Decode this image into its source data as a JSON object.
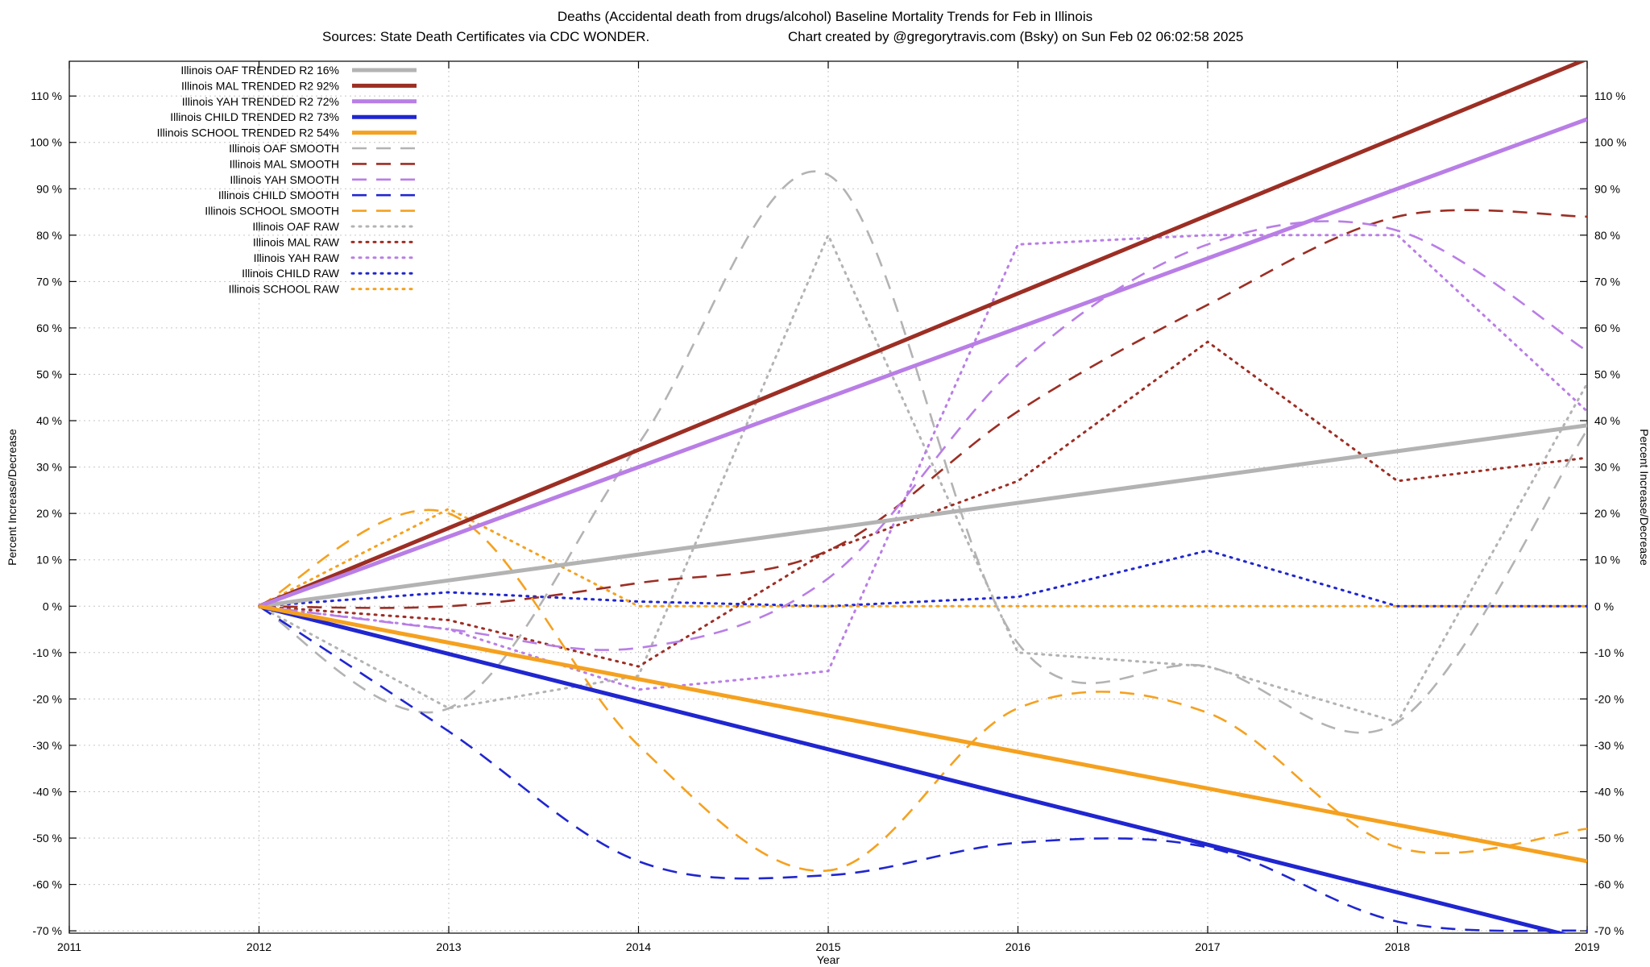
{
  "header": {
    "title_line1": "Deaths (Accidental death from drugs/alcohol)  Baseline Mortality Trends for Feb in Illinois",
    "sources": "Sources: State Death Certificates via CDC WONDER.",
    "credit": "Chart created by @gregorytravis.com (Bsky) on Sun Feb 02 06:02:58 2025"
  },
  "chart_data": {
    "type": "line",
    "title": "Deaths (Accidental death from drugs/alcohol)  Baseline Mortality Trends for Feb in Illinois",
    "subtitle_left": "Sources: State Death Certificates via CDC WONDER.",
    "subtitle_right": "Chart created by @gregorytravis.com (Bsky) on Sun Feb 02 06:02:58 2025",
    "xlabel": "Year",
    "ylabel_left": "Percent Increase/Decrease",
    "ylabel_right": "Percent Increase/Decrease",
    "xlim": [
      2011,
      2019
    ],
    "ylim": [
      -70.5,
      117.5
    ],
    "x_ticks": [
      2011,
      2012,
      2013,
      2014,
      2015,
      2016,
      2017,
      2018,
      2019
    ],
    "y_ticks": [
      -70,
      -60,
      -50,
      -40,
      -30,
      -20,
      -10,
      0,
      10,
      20,
      30,
      40,
      50,
      60,
      70,
      80,
      90,
      100,
      110
    ],
    "y_tick_suffix": " %",
    "grid": true,
    "legend_position": "top-left-inside",
    "years": [
      2012,
      2013,
      2014,
      2015,
      2016,
      2017,
      2018,
      2019
    ],
    "series": [
      {
        "id": "oaf-trended",
        "label": "Illinois OAF TRENDED R2  16%",
        "style": "trended",
        "color": "#b3b3b3",
        "x": [
          2012,
          2019
        ],
        "values": [
          0,
          39
        ]
      },
      {
        "id": "mal-trended",
        "label": "Illinois MAL TRENDED R2  92%",
        "style": "trended",
        "color": "#9c2e24",
        "x": [
          2012,
          2019
        ],
        "values": [
          0,
          118
        ]
      },
      {
        "id": "yah-trended",
        "label": "Illinois YAH TRENDED R2  72%",
        "style": "trended",
        "color": "#b97ee6",
        "x": [
          2012,
          2019
        ],
        "values": [
          0,
          105
        ]
      },
      {
        "id": "child-trended",
        "label": "Illinois CHILD TRENDED R2  73%",
        "style": "trended",
        "color": "#2026cf",
        "x": [
          2012,
          2019
        ],
        "values": [
          0,
          -72
        ]
      },
      {
        "id": "school-trended",
        "label": "Illinois SCHOOL TRENDED R2  54%",
        "style": "trended",
        "color": "#f5a11f",
        "x": [
          2012,
          2019
        ],
        "values": [
          0,
          -55
        ]
      },
      {
        "id": "oaf-smooth",
        "label": "Illinois OAF SMOOTH",
        "style": "smooth",
        "color": "#b3b3b3",
        "values": [
          0,
          -22,
          35,
          93,
          -8,
          -13,
          -25,
          38
        ]
      },
      {
        "id": "mal-smooth",
        "label": "Illinois MAL SMOOTH",
        "style": "smooth",
        "color": "#9c2e24",
        "values": [
          0,
          0,
          5,
          12,
          42,
          65,
          84,
          84
        ]
      },
      {
        "id": "yah-smooth",
        "label": "Illinois YAH SMOOTH",
        "style": "smooth",
        "color": "#b97ee6",
        "values": [
          0,
          -5,
          -9,
          6,
          52,
          78,
          81,
          55
        ]
      },
      {
        "id": "child-smooth",
        "label": "Illinois CHILD SMOOTH",
        "style": "smooth",
        "color": "#2026cf",
        "values": [
          0,
          -27,
          -55,
          -58,
          -51,
          -52,
          -68,
          -70
        ]
      },
      {
        "id": "school-smooth",
        "label": "Illinois SCHOOL SMOOTH",
        "style": "smooth",
        "color": "#f5a11f",
        "values": [
          0,
          20,
          -30,
          -57,
          -22,
          -23,
          -52,
          -48
        ]
      },
      {
        "id": "oaf-raw",
        "label": "Illinois OAF RAW",
        "style": "raw",
        "color": "#b3b3b3",
        "values": [
          0,
          -22,
          -15,
          80,
          -10,
          -13,
          -25,
          48
        ]
      },
      {
        "id": "mal-raw",
        "label": "Illinois MAL RAW",
        "style": "raw",
        "color": "#9c2e24",
        "values": [
          0,
          -3,
          -13,
          12,
          27,
          57,
          27,
          32
        ]
      },
      {
        "id": "yah-raw",
        "label": "Illinois YAH RAW",
        "style": "raw",
        "color": "#b97ee6",
        "values": [
          0,
          -5,
          -18,
          -14,
          78,
          80,
          80,
          42
        ]
      },
      {
        "id": "child-raw",
        "label": "Illinois CHILD RAW",
        "style": "raw",
        "color": "#2026cf",
        "values": [
          0,
          3,
          1,
          0,
          2,
          12,
          0,
          0
        ]
      },
      {
        "id": "school-raw",
        "label": "Illinois SCHOOL RAW",
        "style": "raw",
        "color": "#f5a11f",
        "values": [
          0,
          21,
          0,
          0,
          0,
          0,
          0,
          0
        ]
      }
    ]
  }
}
